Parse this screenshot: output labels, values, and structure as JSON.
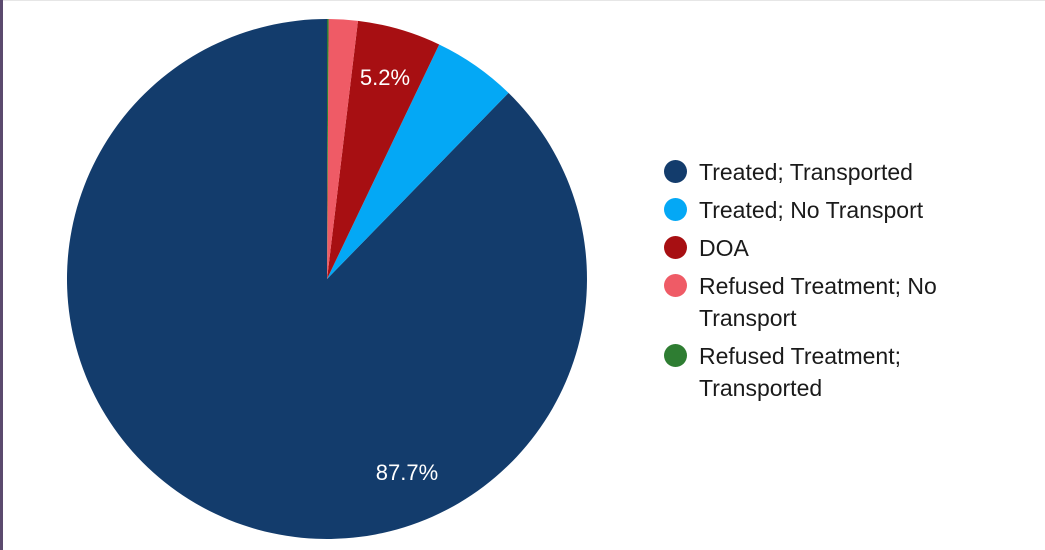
{
  "chart_data": {
    "type": "pie",
    "title": "",
    "slices": [
      {
        "name": "Treated; Transported",
        "value": 87.7,
        "color": "#133c6c",
        "label": "87.7%"
      },
      {
        "name": "Treated; No Transport",
        "value": 5.2,
        "color": "#04a8f5",
        "label": ""
      },
      {
        "name": "DOA",
        "value": 5.2,
        "color": "#a70f12",
        "label": "5.2%"
      },
      {
        "name": "Refused Treatment; No Transport",
        "value": 1.8,
        "color": "#ef5b66",
        "label": ""
      },
      {
        "name": "Refused Treatment; Transported",
        "value": 0.1,
        "color": "#2e7d32",
        "label": ""
      }
    ],
    "legend_position": "right"
  },
  "legend": {
    "items": [
      {
        "label": "Treated; Transported",
        "color": "#133c6c"
      },
      {
        "label": "Treated; No Transport",
        "color": "#04a8f5"
      },
      {
        "label": "DOA",
        "color": "#a70f12"
      },
      {
        "label": "Refused Treatment; No Transport",
        "color": "#ef5b66"
      },
      {
        "label": "Refused Treatment; Transported",
        "color": "#2e7d32"
      }
    ]
  }
}
